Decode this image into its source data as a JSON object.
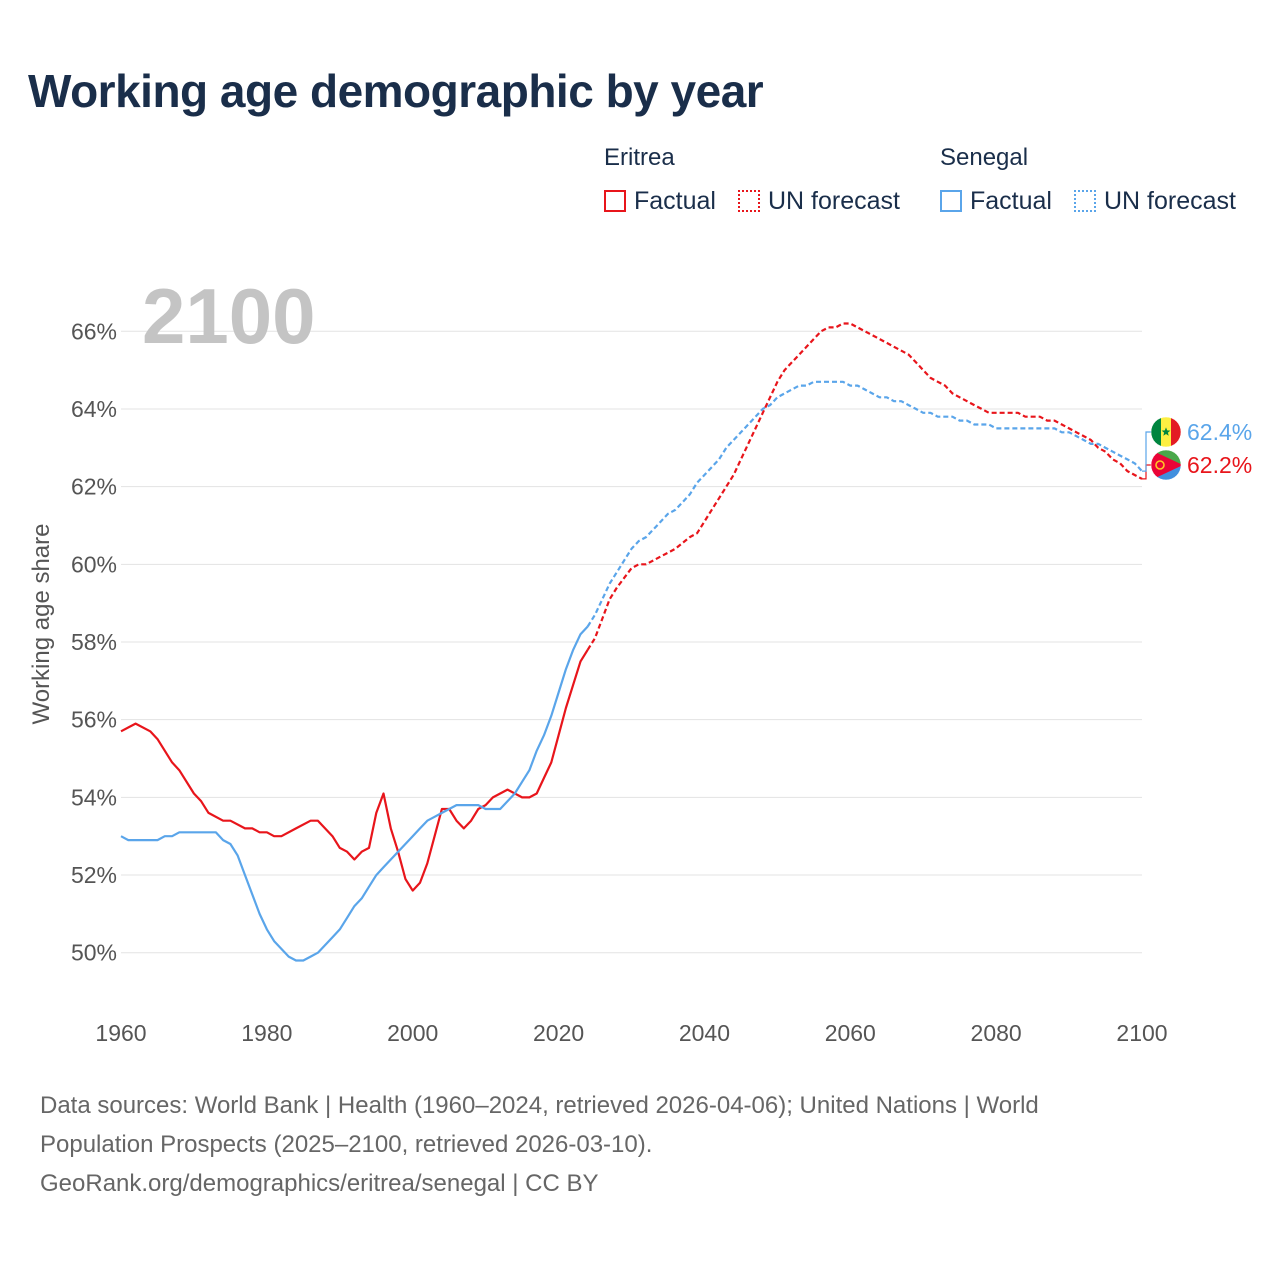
{
  "title": "Working age demographic by year",
  "legend": {
    "groups": [
      {
        "country": "Eritrea",
        "factual": "Factual",
        "forecast": "UN forecast"
      },
      {
        "country": "Senegal",
        "factual": "Factual",
        "forecast": "UN forecast"
      }
    ]
  },
  "colors": {
    "eritrea": "#e8151b",
    "senegal": "#5aa5ea",
    "grid": "#e3e3e3",
    "year_label": "#c4c4c4"
  },
  "footer": {
    "line1": "Data sources: World Bank | Health (1960–2024, retrieved 2026-04-06); United Nations | World",
    "line2": "Population Prospects (2025–2100, retrieved 2026-03-10).",
    "line3": "GeoRank.org/demographics/eritrea/senegal | CC BY"
  },
  "chart_data": {
    "type": "line",
    "title": "Working age demographic by year",
    "xlabel": "",
    "ylabel": "Working age share",
    "xlim": [
      1960,
      2100
    ],
    "ylim": [
      48.5,
      67.5
    ],
    "x_ticks": [
      1960,
      1980,
      2000,
      2020,
      2040,
      2060,
      2080,
      2100
    ],
    "y_ticks": [
      50,
      52,
      54,
      56,
      58,
      60,
      62,
      64,
      66
    ],
    "y_tick_labels": [
      "50%",
      "52%",
      "54%",
      "56%",
      "58%",
      "60%",
      "62%",
      "64%",
      "66%"
    ],
    "year_label": "2100",
    "forecast_start": 2024,
    "series": [
      {
        "name": "Eritrea",
        "color": "#e8151b",
        "end_label": "62.2%",
        "flag": "eritrea-flag-icon",
        "points": [
          [
            1960,
            55.7
          ],
          [
            1962,
            55.9
          ],
          [
            1964,
            55.7
          ],
          [
            1965,
            55.5
          ],
          [
            1967,
            54.9
          ],
          [
            1968,
            54.7
          ],
          [
            1970,
            54.1
          ],
          [
            1971,
            53.9
          ],
          [
            1972,
            53.6
          ],
          [
            1974,
            53.4
          ],
          [
            1975,
            53.4
          ],
          [
            1977,
            53.2
          ],
          [
            1978,
            53.2
          ],
          [
            1979,
            53.1
          ],
          [
            1980,
            53.1
          ],
          [
            1981,
            53.0
          ],
          [
            1982,
            53.0
          ],
          [
            1984,
            53.2
          ],
          [
            1986,
            53.4
          ],
          [
            1987,
            53.4
          ],
          [
            1989,
            53.0
          ],
          [
            1990,
            52.7
          ],
          [
            1991,
            52.6
          ],
          [
            1992,
            52.4
          ],
          [
            1993,
            52.6
          ],
          [
            1994,
            52.7
          ],
          [
            1995,
            53.6
          ],
          [
            1996,
            54.1
          ],
          [
            1997,
            53.2
          ],
          [
            1998,
            52.6
          ],
          [
            1999,
            51.9
          ],
          [
            2000,
            51.6
          ],
          [
            2001,
            51.8
          ],
          [
            2002,
            52.3
          ],
          [
            2003,
            53.0
          ],
          [
            2004,
            53.7
          ],
          [
            2005,
            53.7
          ],
          [
            2006,
            53.4
          ],
          [
            2007,
            53.2
          ],
          [
            2008,
            53.4
          ],
          [
            2009,
            53.7
          ],
          [
            2010,
            53.8
          ],
          [
            2011,
            54.0
          ],
          [
            2013,
            54.2
          ],
          [
            2015,
            54.0
          ],
          [
            2016,
            54.0
          ],
          [
            2017,
            54.1
          ],
          [
            2018,
            54.5
          ],
          [
            2019,
            54.9
          ],
          [
            2020,
            55.6
          ],
          [
            2021,
            56.3
          ],
          [
            2022,
            56.9
          ],
          [
            2023,
            57.5
          ],
          [
            2024,
            57.8
          ],
          [
            2025,
            58.1
          ],
          [
            2026,
            58.6
          ],
          [
            2027,
            59.1
          ],
          [
            2028,
            59.4
          ],
          [
            2030,
            59.9
          ],
          [
            2031,
            60.0
          ],
          [
            2032,
            60.0
          ],
          [
            2033,
            60.1
          ],
          [
            2034,
            60.2
          ],
          [
            2035,
            60.3
          ],
          [
            2036,
            60.4
          ],
          [
            2038,
            60.7
          ],
          [
            2039,
            60.8
          ],
          [
            2040,
            61.1
          ],
          [
            2041,
            61.4
          ],
          [
            2042,
            61.7
          ],
          [
            2043,
            62.0
          ],
          [
            2044,
            62.3
          ],
          [
            2045,
            62.7
          ],
          [
            2046,
            63.1
          ],
          [
            2047,
            63.5
          ],
          [
            2048,
            63.9
          ],
          [
            2049,
            64.3
          ],
          [
            2050,
            64.7
          ],
          [
            2051,
            65.0
          ],
          [
            2052,
            65.2
          ],
          [
            2053,
            65.4
          ],
          [
            2054,
            65.6
          ],
          [
            2055,
            65.8
          ],
          [
            2056,
            66.0
          ],
          [
            2057,
            66.1
          ],
          [
            2058,
            66.1
          ],
          [
            2059,
            66.2
          ],
          [
            2060,
            66.2
          ],
          [
            2061,
            66.1
          ],
          [
            2062,
            66.0
          ],
          [
            2063,
            65.9
          ],
          [
            2064,
            65.8
          ],
          [
            2065,
            65.7
          ],
          [
            2066,
            65.6
          ],
          [
            2067,
            65.5
          ],
          [
            2068,
            65.4
          ],
          [
            2069,
            65.2
          ],
          [
            2070,
            65.0
          ],
          [
            2071,
            64.8
          ],
          [
            2072,
            64.7
          ],
          [
            2073,
            64.6
          ],
          [
            2074,
            64.4
          ],
          [
            2075,
            64.3
          ],
          [
            2076,
            64.2
          ],
          [
            2077,
            64.1
          ],
          [
            2078,
            64.0
          ],
          [
            2079,
            63.9
          ],
          [
            2080,
            63.9
          ],
          [
            2081,
            63.9
          ],
          [
            2082,
            63.9
          ],
          [
            2083,
            63.9
          ],
          [
            2084,
            63.8
          ],
          [
            2085,
            63.8
          ],
          [
            2086,
            63.8
          ],
          [
            2087,
            63.7
          ],
          [
            2088,
            63.7
          ],
          [
            2089,
            63.6
          ],
          [
            2090,
            63.5
          ],
          [
            2091,
            63.4
          ],
          [
            2092,
            63.3
          ],
          [
            2093,
            63.2
          ],
          [
            2094,
            63.0
          ],
          [
            2095,
            62.9
          ],
          [
            2096,
            62.7
          ],
          [
            2097,
            62.6
          ],
          [
            2098,
            62.4
          ],
          [
            2099,
            62.3
          ],
          [
            2100,
            62.2
          ]
        ]
      },
      {
        "name": "Senegal",
        "color": "#5aa5ea",
        "end_label": "62.4%",
        "flag": "senegal-flag-icon",
        "points": [
          [
            1960,
            53.0
          ],
          [
            1961,
            52.9
          ],
          [
            1962,
            52.9
          ],
          [
            1964,
            52.9
          ],
          [
            1965,
            52.9
          ],
          [
            1966,
            53.0
          ],
          [
            1967,
            53.0
          ],
          [
            1968,
            53.1
          ],
          [
            1970,
            53.1
          ],
          [
            1972,
            53.1
          ],
          [
            1973,
            53.1
          ],
          [
            1974,
            52.9
          ],
          [
            1975,
            52.8
          ],
          [
            1976,
            52.5
          ],
          [
            1977,
            52.0
          ],
          [
            1978,
            51.5
          ],
          [
            1979,
            51.0
          ],
          [
            1980,
            50.6
          ],
          [
            1981,
            50.3
          ],
          [
            1982,
            50.1
          ],
          [
            1983,
            49.9
          ],
          [
            1984,
            49.8
          ],
          [
            1985,
            49.8
          ],
          [
            1986,
            49.9
          ],
          [
            1987,
            50.0
          ],
          [
            1988,
            50.2
          ],
          [
            1989,
            50.4
          ],
          [
            1990,
            50.6
          ],
          [
            1991,
            50.9
          ],
          [
            1992,
            51.2
          ],
          [
            1993,
            51.4
          ],
          [
            1994,
            51.7
          ],
          [
            1995,
            52.0
          ],
          [
            1996,
            52.2
          ],
          [
            1997,
            52.4
          ],
          [
            1998,
            52.6
          ],
          [
            1999,
            52.8
          ],
          [
            2000,
            53.0
          ],
          [
            2001,
            53.2
          ],
          [
            2002,
            53.4
          ],
          [
            2003,
            53.5
          ],
          [
            2004,
            53.6
          ],
          [
            2005,
            53.7
          ],
          [
            2006,
            53.8
          ],
          [
            2007,
            53.8
          ],
          [
            2008,
            53.8
          ],
          [
            2009,
            53.8
          ],
          [
            2010,
            53.7
          ],
          [
            2011,
            53.7
          ],
          [
            2012,
            53.7
          ],
          [
            2013,
            53.9
          ],
          [
            2014,
            54.1
          ],
          [
            2015,
            54.4
          ],
          [
            2016,
            54.7
          ],
          [
            2017,
            55.2
          ],
          [
            2018,
            55.6
          ],
          [
            2019,
            56.1
          ],
          [
            2020,
            56.7
          ],
          [
            2021,
            57.3
          ],
          [
            2022,
            57.8
          ],
          [
            2023,
            58.2
          ],
          [
            2024,
            58.4
          ],
          [
            2025,
            58.7
          ],
          [
            2026,
            59.1
          ],
          [
            2027,
            59.5
          ],
          [
            2028,
            59.8
          ],
          [
            2029,
            60.1
          ],
          [
            2030,
            60.4
          ],
          [
            2031,
            60.6
          ],
          [
            2032,
            60.7
          ],
          [
            2033,
            60.9
          ],
          [
            2034,
            61.1
          ],
          [
            2035,
            61.3
          ],
          [
            2036,
            61.4
          ],
          [
            2037,
            61.6
          ],
          [
            2038,
            61.8
          ],
          [
            2039,
            62.1
          ],
          [
            2040,
            62.3
          ],
          [
            2041,
            62.5
          ],
          [
            2042,
            62.7
          ],
          [
            2043,
            63.0
          ],
          [
            2044,
            63.2
          ],
          [
            2045,
            63.4
          ],
          [
            2046,
            63.6
          ],
          [
            2047,
            63.8
          ],
          [
            2048,
            64.0
          ],
          [
            2049,
            64.1
          ],
          [
            2050,
            64.3
          ],
          [
            2051,
            64.4
          ],
          [
            2052,
            64.5
          ],
          [
            2053,
            64.6
          ],
          [
            2054,
            64.6
          ],
          [
            2055,
            64.7
          ],
          [
            2056,
            64.7
          ],
          [
            2057,
            64.7
          ],
          [
            2058,
            64.7
          ],
          [
            2059,
            64.7
          ],
          [
            2060,
            64.6
          ],
          [
            2061,
            64.6
          ],
          [
            2062,
            64.5
          ],
          [
            2063,
            64.4
          ],
          [
            2064,
            64.3
          ],
          [
            2065,
            64.3
          ],
          [
            2066,
            64.2
          ],
          [
            2067,
            64.2
          ],
          [
            2068,
            64.1
          ],
          [
            2069,
            64.0
          ],
          [
            2070,
            63.9
          ],
          [
            2071,
            63.9
          ],
          [
            2072,
            63.8
          ],
          [
            2073,
            63.8
          ],
          [
            2074,
            63.8
          ],
          [
            2075,
            63.7
          ],
          [
            2076,
            63.7
          ],
          [
            2077,
            63.6
          ],
          [
            2078,
            63.6
          ],
          [
            2079,
            63.6
          ],
          [
            2080,
            63.5
          ],
          [
            2081,
            63.5
          ],
          [
            2082,
            63.5
          ],
          [
            2083,
            63.5
          ],
          [
            2084,
            63.5
          ],
          [
            2085,
            63.5
          ],
          [
            2086,
            63.5
          ],
          [
            2087,
            63.5
          ],
          [
            2088,
            63.5
          ],
          [
            2089,
            63.4
          ],
          [
            2090,
            63.4
          ],
          [
            2091,
            63.3
          ],
          [
            2092,
            63.2
          ],
          [
            2093,
            63.1
          ],
          [
            2094,
            63.1
          ],
          [
            2095,
            63.0
          ],
          [
            2096,
            62.9
          ],
          [
            2097,
            62.8
          ],
          [
            2098,
            62.7
          ],
          [
            2099,
            62.6
          ],
          [
            2100,
            62.4
          ]
        ]
      }
    ]
  }
}
